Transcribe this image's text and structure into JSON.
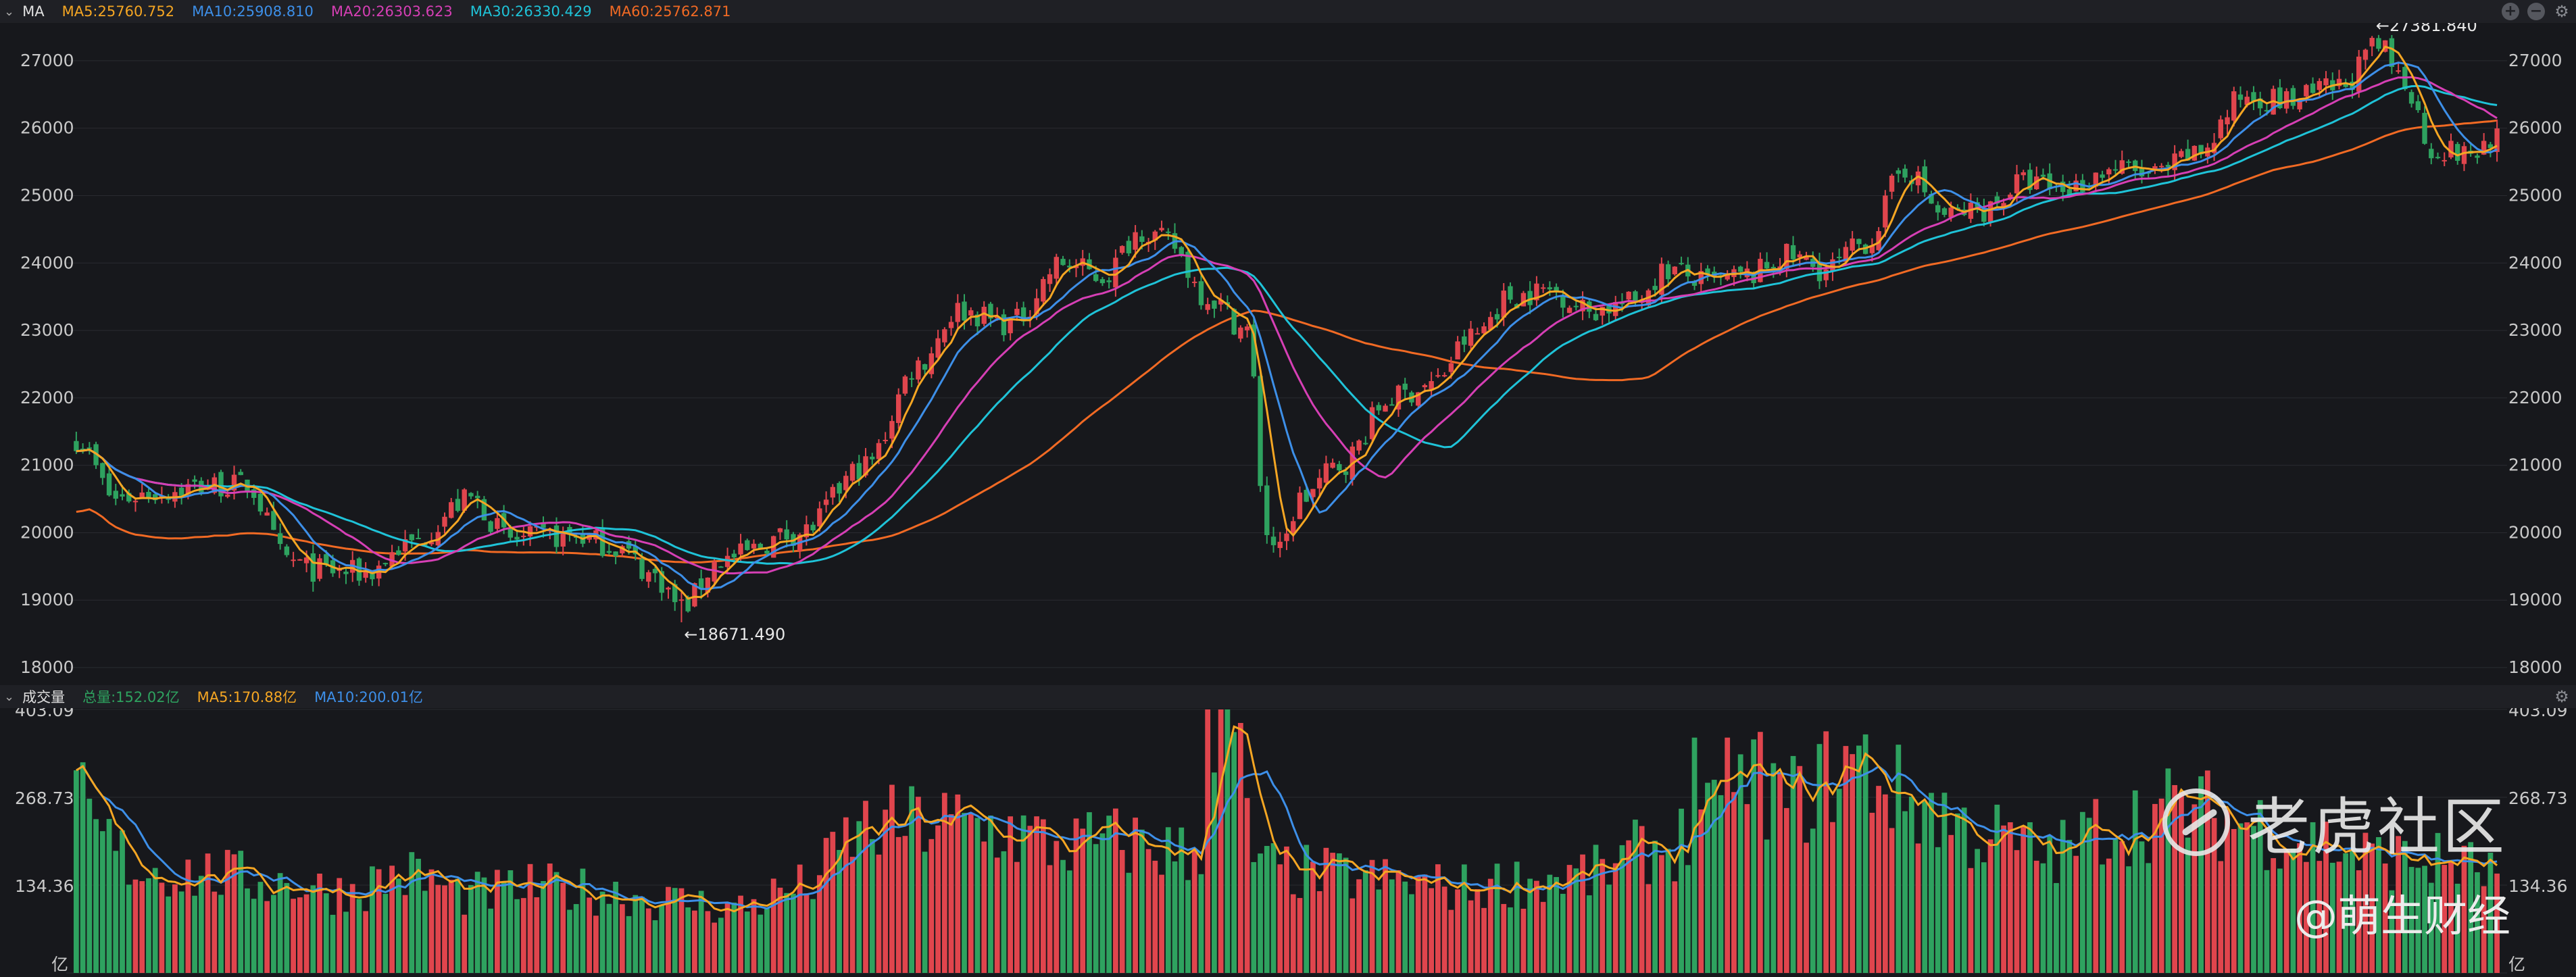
{
  "colors": {
    "bg": "#17181c",
    "grid": "#2a2b30",
    "axis": "#c9c9c9",
    "up": "#e0454d",
    "down": "#2ea25f",
    "ma5": "#f5a623",
    "ma10": "#3d8fe8",
    "ma20": "#d63fb5",
    "ma30": "#1fc3d8",
    "ma60": "#f16a24"
  },
  "price_panel": {
    "name": "MA",
    "legend": [
      {
        "key": "ma5",
        "text": "MA5:25760.752"
      },
      {
        "key": "ma10",
        "text": "MA10:25908.810"
      },
      {
        "key": "ma20",
        "text": "MA20:26303.623"
      },
      {
        "key": "ma30",
        "text": "MA30:26330.429"
      },
      {
        "key": "ma60",
        "text": "MA60:25762.871"
      }
    ]
  },
  "volume_panel": {
    "name": "成交量",
    "legend": [
      {
        "key": "total",
        "text": "总量:152.02亿",
        "color": "#2ea25f"
      },
      {
        "key": "ma5",
        "text": "MA5:170.88亿"
      },
      {
        "key": "ma10",
        "text": "MA10:200.01亿"
      }
    ]
  },
  "controls": {
    "add": "+",
    "minus": "−",
    "gear": "⚙"
  },
  "watermark": {
    "brand": "老虎社区",
    "author": "@萌生财经"
  },
  "chart_data": [
    {
      "type": "candlestick",
      "ylim": [
        17800,
        27500
      ],
      "yticks": [
        18000,
        19000,
        20000,
        21000,
        22000,
        23000,
        24000,
        25000,
        26000,
        27000
      ],
      "annotations": [
        {
          "text": "←27381.840",
          "value": 27381.84
        },
        {
          "text": "←18671.490",
          "value": 18671.49
        }
      ],
      "close_anchors": [
        [
          0,
          21400
        ],
        [
          6,
          20500
        ],
        [
          12,
          20600
        ],
        [
          20,
          20700
        ],
        [
          26,
          20700
        ],
        [
          32,
          19600
        ],
        [
          36,
          19450
        ],
        [
          44,
          19400
        ],
        [
          50,
          19800
        ],
        [
          60,
          20500
        ],
        [
          66,
          19900
        ],
        [
          76,
          19950
        ],
        [
          82,
          19800
        ],
        [
          88,
          19350
        ],
        [
          92,
          18900
        ],
        [
          98,
          19600
        ],
        [
          110,
          20000
        ],
        [
          120,
          21000
        ],
        [
          128,
          22500
        ],
        [
          134,
          23300
        ],
        [
          142,
          23100
        ],
        [
          150,
          24000
        ],
        [
          156,
          23800
        ],
        [
          162,
          24500
        ],
        [
          166,
          24300
        ],
        [
          172,
          23500
        ],
        [
          178,
          23000
        ],
        [
          181,
          20000
        ],
        [
          183,
          19700
        ],
        [
          186,
          20500
        ],
        [
          192,
          21000
        ],
        [
          200,
          22000
        ],
        [
          206,
          22200
        ],
        [
          212,
          22900
        ],
        [
          218,
          23500
        ],
        [
          224,
          23600
        ],
        [
          230,
          23300
        ],
        [
          236,
          23400
        ],
        [
          242,
          23900
        ],
        [
          248,
          23700
        ],
        [
          254,
          23800
        ],
        [
          260,
          24100
        ],
        [
          266,
          23900
        ],
        [
          272,
          24300
        ],
        [
          278,
          25400
        ],
        [
          284,
          24700
        ],
        [
          290,
          24800
        ],
        [
          296,
          25200
        ],
        [
          302,
          25100
        ],
        [
          310,
          25400
        ],
        [
          316,
          25300
        ],
        [
          322,
          25600
        ],
        [
          330,
          26500
        ],
        [
          336,
          26400
        ],
        [
          344,
          26600
        ],
        [
          350,
          27200
        ],
        [
          354,
          26700
        ],
        [
          358,
          25700
        ],
        [
          364,
          25600
        ],
        [
          368,
          25900
        ]
      ],
      "volume_anchors": [
        [
          0,
          280
        ],
        [
          4,
          200
        ],
        [
          10,
          160
        ],
        [
          20,
          150
        ],
        [
          30,
          140
        ],
        [
          40,
          125
        ],
        [
          50,
          150
        ],
        [
          60,
          120
        ],
        [
          70,
          130
        ],
        [
          80,
          125
        ],
        [
          90,
          110
        ],
        [
          100,
          100
        ],
        [
          110,
          130
        ],
        [
          120,
          220
        ],
        [
          130,
          230
        ],
        [
          140,
          220
        ],
        [
          150,
          195
        ],
        [
          160,
          200
        ],
        [
          170,
          180
        ],
        [
          175,
          390
        ],
        [
          180,
          160
        ],
        [
          190,
          150
        ],
        [
          200,
          140
        ],
        [
          210,
          130
        ],
        [
          220,
          140
        ],
        [
          230,
          150
        ],
        [
          240,
          190
        ],
        [
          250,
          230
        ],
        [
          255,
          300
        ],
        [
          260,
          260
        ],
        [
          270,
          320
        ],
        [
          280,
          260
        ],
        [
          290,
          210
        ],
        [
          300,
          180
        ],
        [
          310,
          230
        ],
        [
          320,
          250
        ],
        [
          330,
          230
        ],
        [
          340,
          200
        ],
        [
          350,
          175
        ],
        [
          360,
          170
        ],
        [
          368,
          152
        ]
      ]
    },
    {
      "type": "bar",
      "name": "成交量",
      "ylim": [
        0,
        403.09
      ],
      "yticks": [
        {
          "value": 403.09,
          "text": "403.09"
        },
        {
          "value": 268.73,
          "text": "268.73"
        },
        {
          "value": 134.36,
          "text": "134.36"
        },
        {
          "value": 0,
          "text": "亿"
        }
      ]
    }
  ]
}
